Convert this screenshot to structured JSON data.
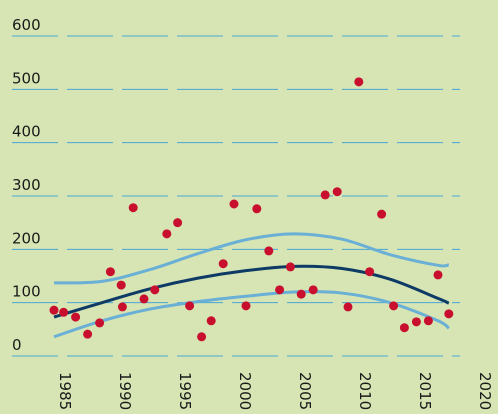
{
  "chart_data": {
    "type": "scatter",
    "x": [
      1984.0,
      1984.8,
      1985.8,
      1986.8,
      1987.8,
      1988.7,
      1989.6,
      1989.7,
      1990.6,
      1991.5,
      1992.4,
      1993.4,
      1994.3,
      1995.3,
      1996.3,
      1997.1,
      1998.1,
      1999.0,
      2000.0,
      2000.9,
      2001.9,
      2002.8,
      2003.7,
      2004.6,
      2005.6,
      2006.6,
      2007.6,
      2008.5,
      2009.4,
      2010.3,
      2011.3,
      2012.3,
      2013.2,
      2014.2,
      2015.2,
      2016.0,
      2016.9
    ],
    "values": [
      86,
      82,
      73,
      41,
      62,
      158,
      133,
      92,
      278,
      107,
      124,
      229,
      250,
      94,
      36,
      66,
      173,
      285,
      94,
      276,
      197,
      124,
      167,
      116,
      124,
      302,
      308,
      92,
      514,
      158,
      266,
      94,
      53,
      64,
      66,
      152,
      79
    ],
    "color": "#c8102e",
    "lines": [
      {
        "x": [
          1984,
          1988,
          1992,
          1996,
          2000,
          2004,
          2008,
          2012,
          2016,
          2016.9
        ],
        "values": [
          137,
          140,
          162,
          192,
          218,
          229,
          219,
          190,
          170,
          171
        ],
        "color": "#6aafd6"
      },
      {
        "x": [
          1984,
          1988,
          1992,
          1996,
          2000,
          2004,
          2008,
          2012,
          2016,
          2016.9
        ],
        "values": [
          73,
          100,
          126,
          146,
          160,
          168,
          164,
          144,
          108,
          99
        ],
        "color": "#0d3b66"
      },
      {
        "x": [
          1984,
          1988,
          1992,
          1996,
          2000,
          2004,
          2008,
          2012,
          2016,
          2016.9
        ],
        "values": [
          36,
          66,
          88,
          102,
          112,
          120,
          118,
          100,
          66,
          52
        ],
        "color": "#6aafd6"
      }
    ],
    "xlim": [
      1980,
      2021
    ],
    "ylim": [
      0,
      600
    ],
    "xticks": [
      1985,
      1990,
      1995,
      2000,
      2005,
      2010,
      2015,
      2020
    ],
    "yticks": [
      0,
      100,
      200,
      300,
      400,
      500,
      600
    ],
    "grid": true,
    "grid_color": "#4aa6d6"
  }
}
